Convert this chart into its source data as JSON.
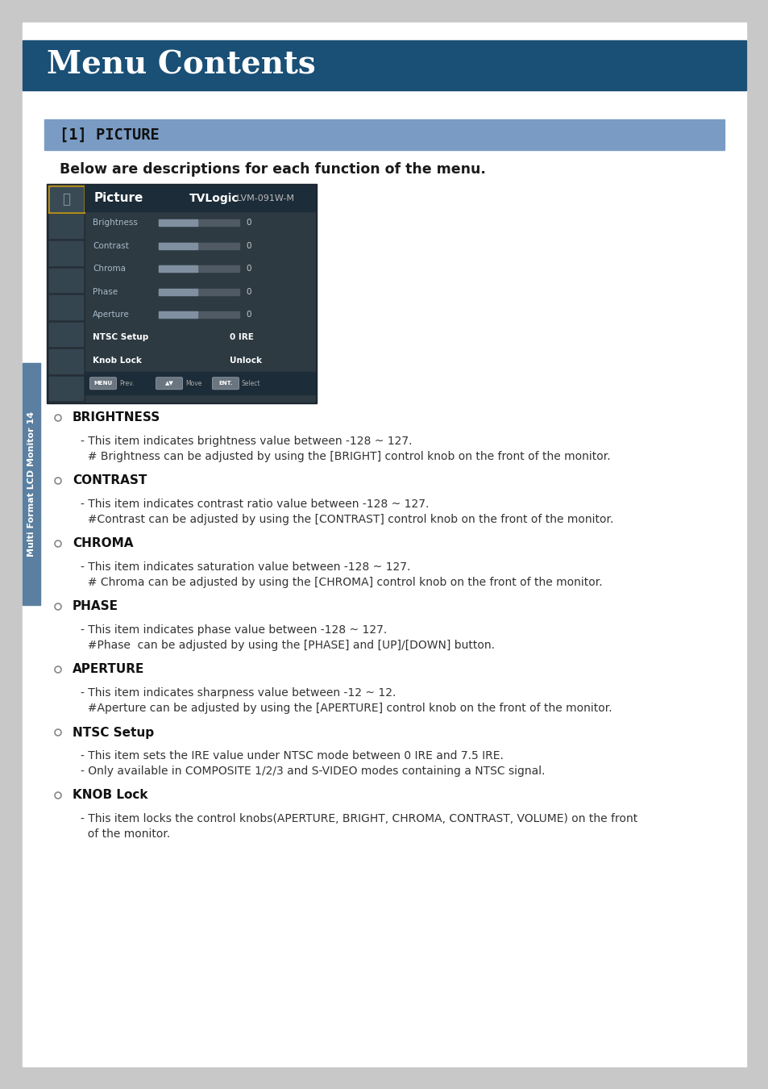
{
  "page_bg": "#c8c8c8",
  "header_bg": "#1a4f76",
  "header_text": "Menu Contents",
  "header_text_color": "#ffffff",
  "section_bg": "#7a9cc4",
  "section_text": "[1] PICTURE",
  "body_bg": "#ffffff",
  "subtitle": "Below are descriptions for each function of the menu.",
  "monitor_bg": "#2d3a42",
  "monitor_title": "Picture",
  "monitor_brand": "TVLogic",
  "monitor_model": " LVM-091W-M",
  "monitor_items": [
    "Brightness",
    "Contrast",
    "Chroma",
    "Phase",
    "Aperture"
  ],
  "monitor_bold_items": [
    {
      "label": "NTSC Setup",
      "value": "0 IRE"
    },
    {
      "label": "Knob Lock",
      "value": "Unlock"
    }
  ],
  "side_label": "Multi Format LCD Monitor 14",
  "side_bg": "#5a7fa0",
  "bullet_sections": [
    {
      "title": "BRIGHTNESS",
      "lines": [
        "- This item indicates brightness value between -128 ~ 127.",
        "  # Brightness can be adjusted by using the [BRIGHT] control knob on the front of the monitor."
      ]
    },
    {
      "title": "CONTRAST",
      "lines": [
        "- This item indicates contrast ratio value between -128 ~ 127.",
        "  #Contrast can be adjusted by using the [CONTRAST] control knob on the front of the monitor."
      ]
    },
    {
      "title": "CHROMA",
      "lines": [
        "- This item indicates saturation value between -128 ~ 127.",
        "  # Chroma can be adjusted by using the [CHROMA] control knob on the front of the monitor."
      ]
    },
    {
      "title": "PHASE",
      "lines": [
        "- This item indicates phase value between -128 ~ 127.",
        "  #Phase  can be adjusted by using the [PHASE] and [UP]/[DOWN] button."
      ]
    },
    {
      "title": "APERTURE",
      "lines": [
        "- This item indicates sharpness value between -12 ~ 12.",
        "  #Aperture can be adjusted by using the [APERTURE] control knob on the front of the monitor."
      ]
    },
    {
      "title": "NTSC Setup",
      "italic_title": true,
      "lines": [
        "- This item sets the IRE value under NTSC mode between 0 IRE and 7.5 IRE.",
        "- Only available in COMPOSITE 1/2/3 and S-VIDEO modes containing a NTSC signal."
      ]
    },
    {
      "title": "KNOB Lock",
      "italic_title": true,
      "lines": [
        "- This item locks the control knobs(APERTURE, BRIGHT, CHROMA, CONTRAST, VOLUME) on the front",
        "  of the monitor."
      ]
    }
  ]
}
